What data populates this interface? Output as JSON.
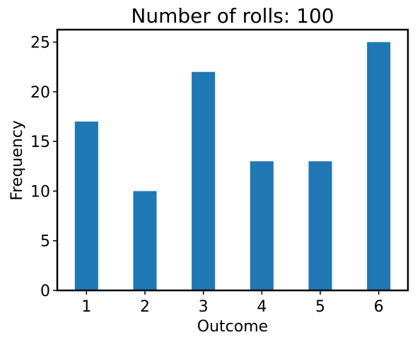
{
  "chart_data": {
    "type": "bar",
    "title": "Number of rolls: 100",
    "xlabel": "Outcome",
    "ylabel": "Frequency",
    "categories": [
      "1",
      "2",
      "3",
      "4",
      "5",
      "6"
    ],
    "values": [
      17,
      10,
      22,
      13,
      13,
      25
    ],
    "ylim": [
      0,
      26.25
    ],
    "yticks": [
      "0",
      "5",
      "10",
      "15",
      "20",
      "25"
    ],
    "bar_color": "#1f77b4",
    "grid": false,
    "legend": "none"
  }
}
